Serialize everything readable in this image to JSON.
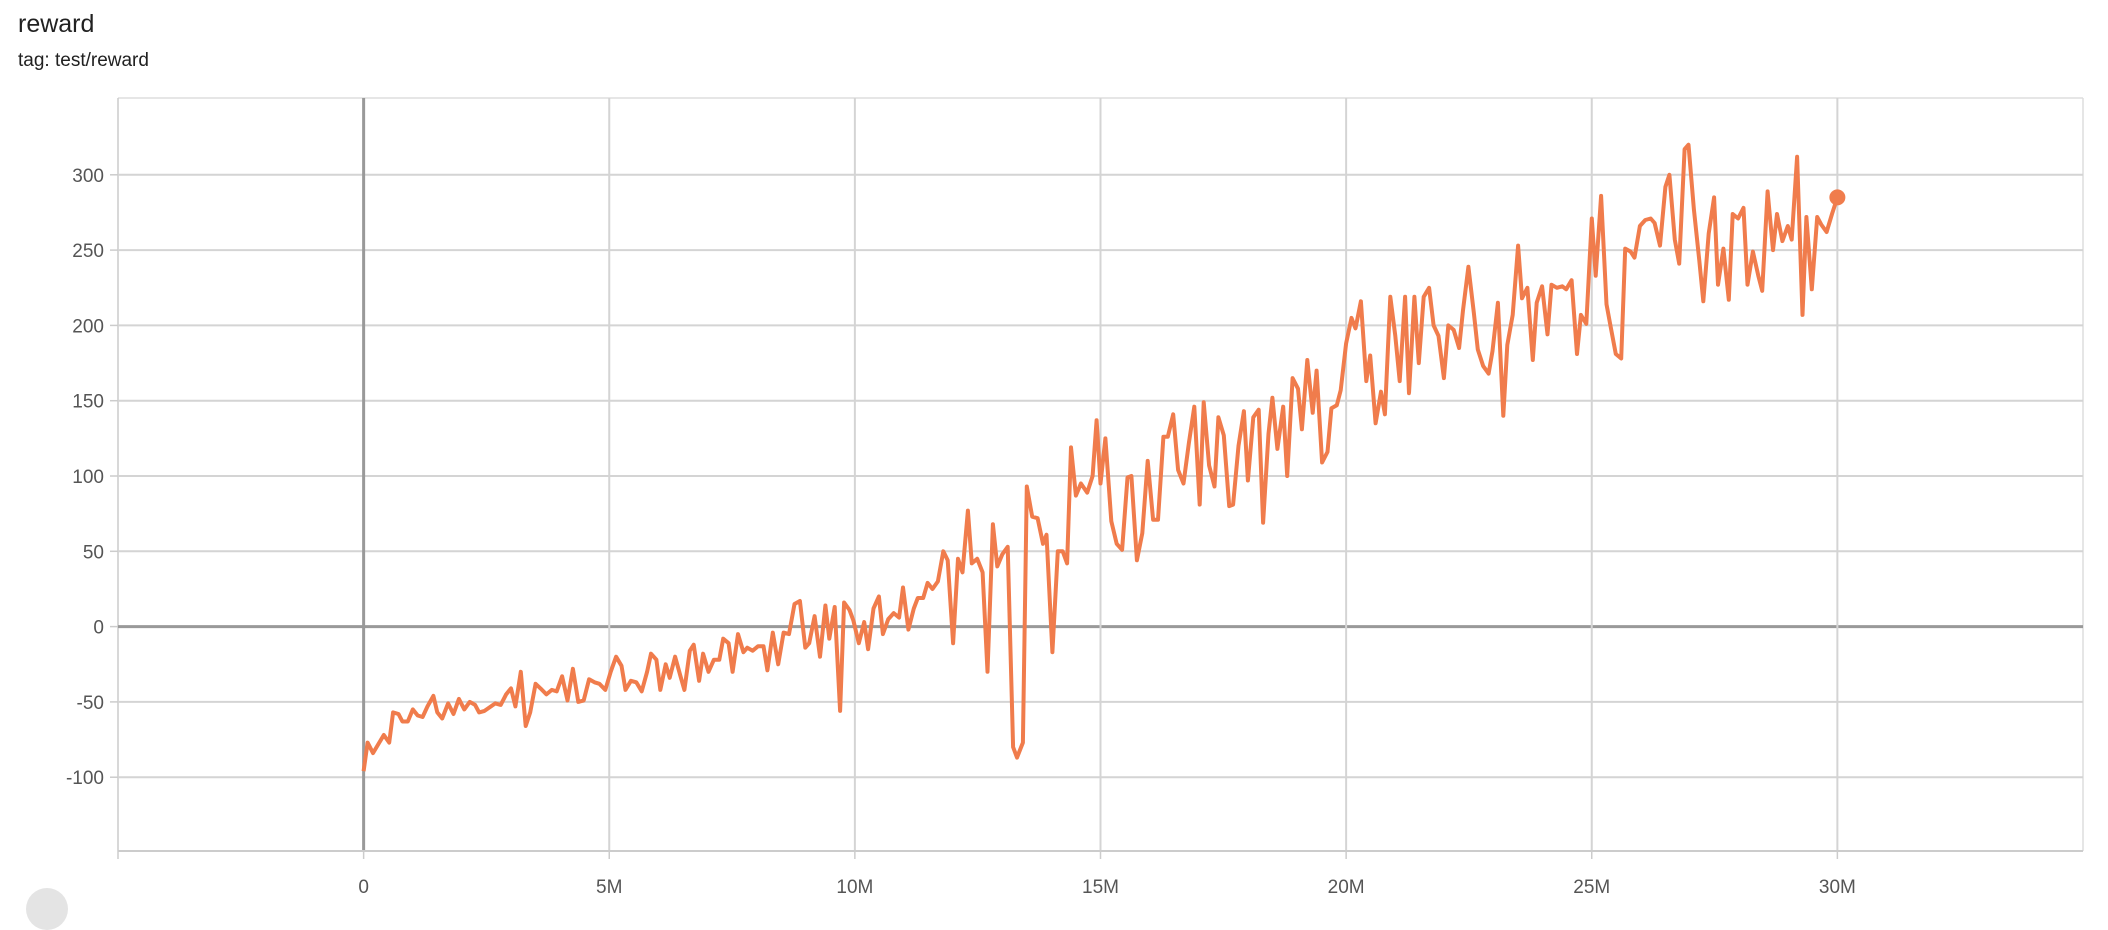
{
  "header": {
    "title": "reward",
    "subtitle": "tag: test/reward"
  },
  "chart_data": {
    "type": "line",
    "title": "reward",
    "xlabel": "",
    "ylabel": "",
    "xlim": [
      -5,
      35
    ],
    "ylim": [
      -149,
      351
    ],
    "x_unit": "M",
    "x_ticks": [
      0,
      5,
      10,
      15,
      20,
      25,
      30
    ],
    "x_tick_labels": [
      "0",
      "5M",
      "10M",
      "15M",
      "20M",
      "25M",
      "30M"
    ],
    "y_ticks": [
      -100,
      -50,
      0,
      50,
      100,
      150,
      200,
      250,
      300
    ],
    "y_tick_labels": [
      "-100",
      "-50",
      "0",
      "50",
      "100",
      "150",
      "200",
      "250",
      "300"
    ],
    "grid": true,
    "line_color": "#f07c4c",
    "series": [
      {
        "x": [
          0,
          0.08,
          0.19,
          0.41,
          0.52,
          0.6,
          0.71,
          0.79,
          0.9,
          1.0,
          1.1,
          1.2,
          1.3,
          1.42,
          1.5,
          1.6,
          1.72,
          1.83,
          1.94,
          2.05,
          2.16,
          2.27,
          2.35,
          2.46,
          2.68,
          2.79,
          2.9,
          3.0,
          3.09,
          3.2,
          3.3,
          3.39,
          3.5,
          3.6,
          3.72,
          3.83,
          3.93,
          4.04,
          4.15,
          4.26,
          4.37,
          4.48,
          4.59,
          4.7,
          4.8,
          4.92,
          5.03,
          5.14,
          5.25,
          5.33,
          5.44,
          5.55,
          5.66,
          5.77,
          5.85,
          5.96,
          6.04,
          6.15,
          6.23,
          6.34,
          6.45,
          6.53,
          6.64,
          6.72,
          6.83,
          6.91,
          7.02,
          7.13,
          7.24,
          7.32,
          7.43,
          7.51,
          7.62,
          7.73,
          7.81,
          7.92,
          8.03,
          8.14,
          8.22,
          8.33,
          8.44,
          8.55,
          8.66,
          8.77,
          8.88,
          8.99,
          9.07,
          9.18,
          9.29,
          9.4,
          9.48,
          9.59,
          9.7,
          9.78,
          9.89,
          9.97,
          10.08,
          10.19,
          10.27,
          10.38,
          10.49,
          10.57,
          10.68,
          10.79,
          10.9,
          10.98,
          11.09,
          11.2,
          11.28,
          11.39,
          11.48,
          11.58,
          11.69,
          11.8,
          11.89,
          12.0,
          12.1,
          12.19,
          12.3,
          12.38,
          12.49,
          12.6,
          12.7,
          12.81,
          12.9,
          13.0,
          13.11,
          13.22,
          13.3,
          13.42,
          13.5,
          13.61,
          13.72,
          13.83,
          13.9,
          14.02,
          14.13,
          14.23,
          14.32,
          14.4,
          14.5,
          14.6,
          14.73,
          14.84,
          14.92,
          15.0,
          15.1,
          15.22,
          15.33,
          15.44,
          15.55,
          15.63,
          15.74,
          15.85,
          15.96,
          16.07,
          16.17,
          16.28,
          16.37,
          16.48,
          16.58,
          16.69,
          16.8,
          16.91,
          17.02,
          17.1,
          17.21,
          17.32,
          17.4,
          17.51,
          17.62,
          17.7,
          17.81,
          17.92,
          18.0,
          18.11,
          18.22,
          18.31,
          18.42,
          18.5,
          18.6,
          18.72,
          18.8,
          18.91,
          19.02,
          19.1,
          19.21,
          19.32,
          19.4,
          19.51,
          19.62,
          19.7,
          19.81,
          19.89,
          20.0,
          20.11,
          20.19,
          20.3,
          20.41,
          20.49,
          20.6,
          20.71,
          20.79,
          20.9,
          21.0,
          21.09,
          21.2,
          21.28,
          21.39,
          21.48,
          21.58,
          21.69,
          21.78,
          21.88,
          21.99,
          22.08,
          22.19,
          22.3,
          22.38,
          22.49,
          22.6,
          22.68,
          22.79,
          22.9,
          22.98,
          23.09,
          23.2,
          23.28,
          23.39,
          23.5,
          23.58,
          23.69,
          23.8,
          23.88,
          23.99,
          24.1,
          24.18,
          24.29,
          24.4,
          24.48,
          24.59,
          24.7,
          24.78,
          24.89,
          25.0,
          25.08,
          25.19,
          25.3,
          25.38,
          25.49,
          25.6,
          25.68,
          25.79,
          25.87,
          25.98,
          26.09,
          26.2,
          26.28,
          26.39,
          26.5,
          26.58,
          26.69,
          26.78,
          26.89,
          26.97,
          27.08,
          27.19,
          27.27,
          27.38,
          27.49,
          27.57,
          27.68,
          27.79,
          27.87,
          27.98,
          28.09,
          28.17,
          28.28,
          28.39,
          28.47,
          28.58,
          28.69,
          28.77,
          28.88,
          28.99,
          29.07,
          29.18,
          29.29,
          29.37,
          29.48,
          29.59,
          29.67,
          29.78,
          29.89,
          30.0
        ],
        "y": [
          -96,
          -77,
          -84,
          -72,
          -77,
          -57,
          -58,
          -63,
          -63,
          -55,
          -59,
          -60,
          -53,
          -46,
          -57,
          -61,
          -51,
          -58,
          -48,
          -55,
          -50,
          -52,
          -57,
          -56,
          -51,
          -52,
          -45,
          -41,
          -53,
          -30,
          -66,
          -57,
          -38,
          -41,
          -45,
          -42,
          -43,
          -33,
          -49,
          -28,
          -50,
          -49,
          -35,
          -37,
          -38,
          -42,
          -30,
          -20,
          -26,
          -42,
          -36,
          -37,
          -43,
          -30,
          -18,
          -22,
          -42,
          -25,
          -34,
          -20,
          -33,
          -42,
          -16,
          -12,
          -36,
          -18,
          -30,
          -22,
          -22,
          -8,
          -11,
          -30,
          -5,
          -17,
          -14,
          -16,
          -13,
          -13,
          -29,
          -4,
          -25,
          -4,
          -5,
          15,
          17,
          -14,
          -11,
          7,
          -20,
          14,
          -8,
          13,
          -56,
          16,
          11,
          4,
          -11,
          3,
          -15,
          12,
          20,
          -5,
          5,
          9,
          6,
          26,
          -2,
          12,
          19,
          19,
          29,
          25,
          30,
          50,
          44,
          -11,
          45,
          36,
          77,
          42,
          45,
          36,
          -30,
          68,
          40,
          48,
          53,
          -80,
          -87,
          -77,
          93,
          73,
          72,
          55,
          61,
          -17,
          50,
          50,
          42,
          119,
          87,
          95,
          89,
          100,
          137,
          95,
          125,
          70,
          55,
          51,
          99,
          100,
          44,
          62,
          110,
          71,
          71,
          126,
          126,
          141,
          104,
          95,
          122,
          146,
          81,
          149,
          107,
          93,
          139,
          127,
          80,
          81,
          120,
          143,
          97,
          139,
          144,
          69,
          128,
          152,
          118,
          146,
          100,
          165,
          158,
          131,
          177,
          142,
          170,
          109,
          116,
          145,
          147,
          157,
          188,
          205,
          198,
          216,
          163,
          180,
          135,
          156,
          141,
          219,
          193,
          163,
          219,
          155,
          219,
          175,
          219,
          225,
          200,
          193,
          165,
          200,
          197,
          185,
          210,
          239,
          208,
          184,
          173,
          168,
          183,
          215,
          140,
          187,
          207,
          253,
          218,
          225,
          177,
          215,
          226,
          194,
          227,
          225,
          226,
          224,
          230,
          181,
          207,
          201,
          271,
          233,
          286,
          214,
          200,
          181,
          178,
          251,
          249,
          245,
          266,
          270,
          271,
          268,
          253,
          292,
          300,
          257,
          241,
          317,
          320,
          277,
          243,
          216,
          261,
          285,
          227,
          251,
          217,
          274,
          271,
          278,
          227,
          249,
          233,
          223,
          289,
          250,
          274,
          256,
          266,
          257,
          312,
          207,
          272,
          224,
          272,
          267,
          262,
          274,
          285
        ]
      }
    ]
  }
}
